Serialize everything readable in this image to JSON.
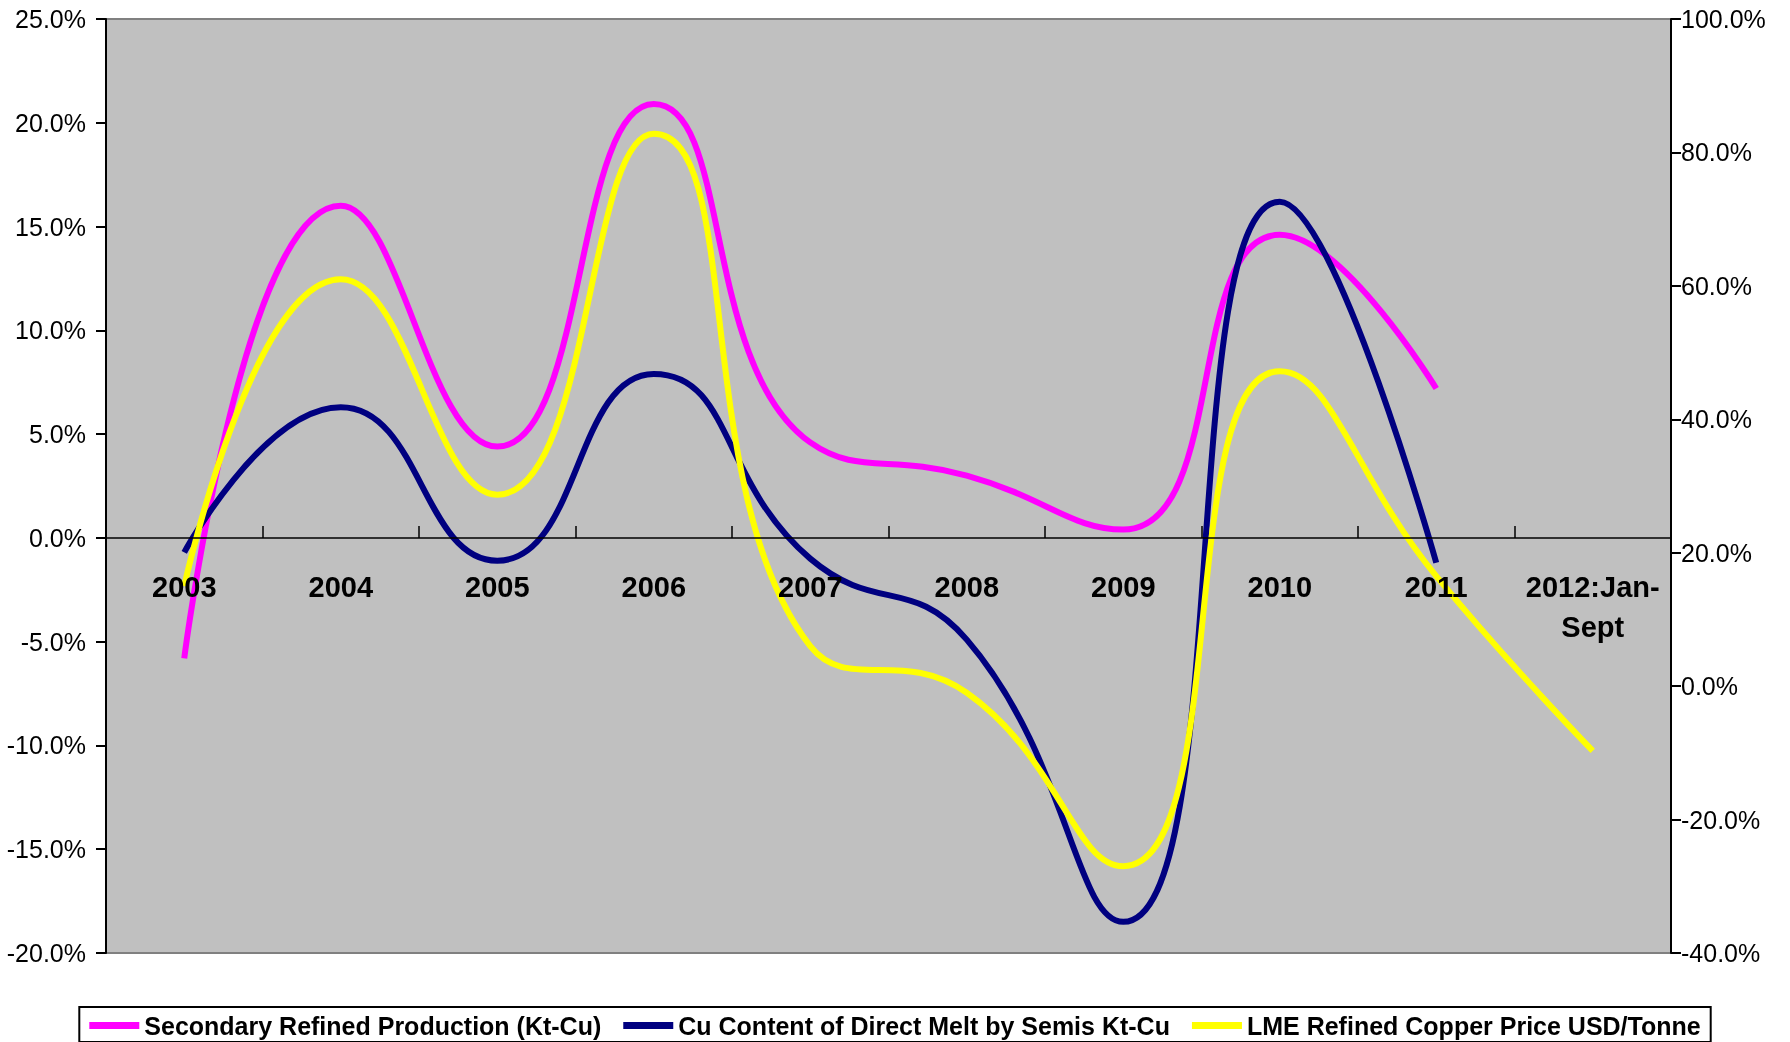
{
  "chart_data": {
    "type": "line",
    "categories": [
      "2003",
      "2004",
      "2005",
      "2006",
      "2007",
      "2008",
      "2009",
      "2010",
      "2011",
      "2012:Jan-Sept"
    ],
    "series": [
      {
        "name": "Secondary Refined Production (Kt-Cu)",
        "color": "#ff00ff",
        "values": [
          -5.8,
          16.0,
          4.4,
          20.9,
          4.6,
          3.0,
          0.4,
          14.6,
          7.2,
          null
        ]
      },
      {
        "name": "Cu Content of Direct Melt by Semis Kt-Cu",
        "color": "#000080",
        "values": [
          -0.7,
          6.3,
          -1.1,
          7.9,
          -1.0,
          -4.9,
          -18.5,
          16.2,
          -1.2,
          null
        ]
      },
      {
        "name": "LME Refined Copper Price USD/Tonne",
        "color": "#ffff00",
        "axis": "y2",
        "values": [
          15,
          61,
          28.7,
          82.8,
          6,
          -1,
          -27,
          47.2,
          16.5,
          -9.7
        ]
      }
    ],
    "ylim": [
      -20,
      25
    ],
    "yticks": [
      {
        "value": -20,
        "label": "-20.0%"
      },
      {
        "value": -15,
        "label": "-15.0%"
      },
      {
        "value": -10,
        "label": "-10.0%"
      },
      {
        "value": -5,
        "label": "-5.0%"
      },
      {
        "value": 0,
        "label": "0.0%"
      },
      {
        "value": 5,
        "label": "5.0%"
      },
      {
        "value": 10,
        "label": "10.0%"
      },
      {
        "value": 15,
        "label": "15.0%"
      },
      {
        "value": 20,
        "label": "20.0%"
      },
      {
        "value": 25,
        "label": "25.0%"
      }
    ],
    "y2lim": [
      -40,
      100
    ],
    "y2ticks": [
      {
        "value": -40,
        "label": "-40.0%"
      },
      {
        "value": -20,
        "label": "-20.0%"
      },
      {
        "value": 0,
        "label": "0.0%"
      },
      {
        "value": 20,
        "label": "20.0%"
      },
      {
        "value": 40,
        "label": "40.0%"
      },
      {
        "value": 60,
        "label": "60.0%"
      },
      {
        "value": 80,
        "label": "80.0%"
      },
      {
        "value": 100,
        "label": "100.0%"
      }
    ],
    "grid": false,
    "legend": "bottom",
    "marker": "none",
    "line_style": "solid"
  }
}
